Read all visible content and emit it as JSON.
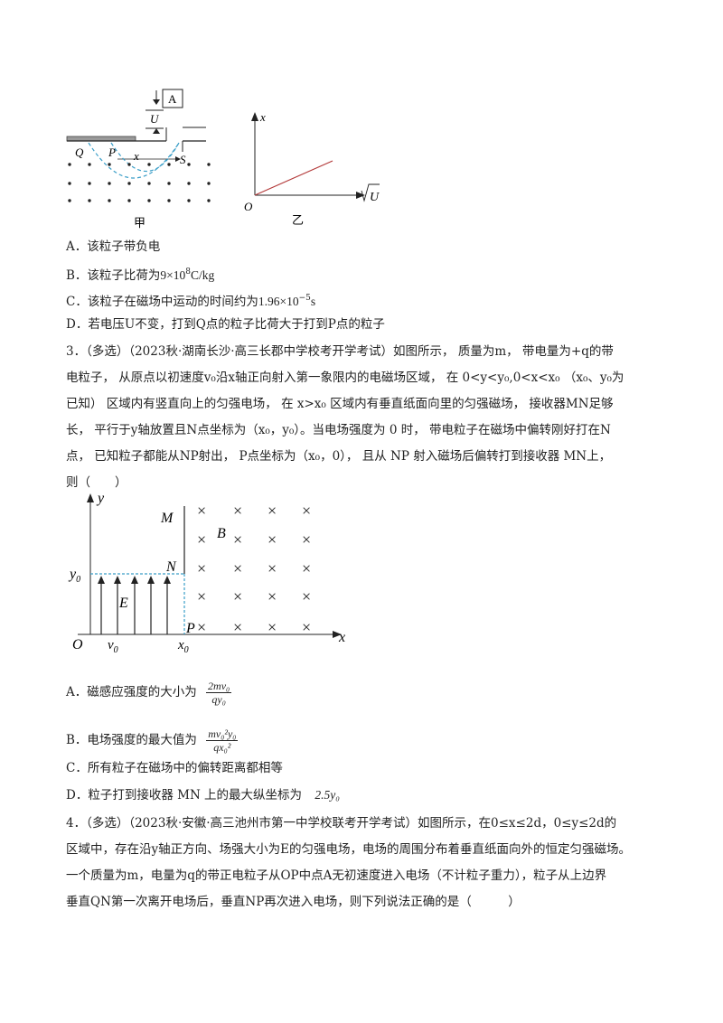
{
  "q2": {
    "fig_jia": {
      "label_A": "A",
      "label_U": "U",
      "label_Q": "Q",
      "label_P": "P",
      "label_S": "S",
      "label_x": "x",
      "caption": "甲"
    },
    "fig_yi": {
      "axis_x": "x",
      "axis_origin": "O",
      "axis_sqrtU": "U",
      "caption": "乙"
    },
    "options": {
      "A": "A．该粒子带负电",
      "B_prefix": "B．该粒子比荷为",
      "B_value": "9×10",
      "B_exp": "8",
      "B_unit": "C/kg",
      "C_prefix": "C．该粒子在磁场中运动的时间约为",
      "C_value": "1.96×10",
      "C_exp": "−5",
      "C_unit": "s",
      "D": "D．若电压U不变，打到Q点的粒子比荷大于打到P点的粒子"
    }
  },
  "q3": {
    "stem_line1": "3．（多选）（2023秋·湖南长沙·高三长郡中学校考开学考试）如图所示， 质量为m， 带电量为+q的带",
    "stem_line2": "电粒子， 从原点以初速度v₀沿x轴正向射入第一象限内的电磁场区域， 在 0<y<y₀,0<x<x₀ （x₀、y₀为",
    "stem_line3": "已知） 区域内有竖直向上的匀强电场， 在 x>x₀ 区域内有垂直纸面向里的匀强磁场， 接收器MN足够",
    "stem_line4": "长， 平行于y轴放置且N点坐标为（x₀，y₀）。当电场强度为 0 时， 带电粒子在磁场中偏转刚好打在N",
    "stem_line5": "点， 已知粒子都能从NP射出， P点坐标为（x₀，0）， 且从 NP 射入磁场后偏转打到接收器 MN上，",
    "stem_line6": "则（　　）",
    "figure": {
      "y": "y",
      "x": "x",
      "M": "M",
      "B": "B",
      "N": "N",
      "E": "E",
      "y0": "y",
      "y0_sub": "0",
      "O": "O",
      "v0": "v",
      "v0_sub": "0",
      "x0": "x",
      "x0_sub": "0",
      "P": "P",
      "cross": "×"
    },
    "options": {
      "A_text": "A．磁感应强度的大小为",
      "A_num": "2mv₀",
      "A_den": "qy₀",
      "B_text": "B．电场强度的最大值为",
      "B_num": "mv₀²y₀",
      "B_den": "qx₀²",
      "C_text": "C．所有粒子在磁场中的偏转距离都相等",
      "D_text": "D．粒子打到接收器 MN 上的最大纵坐标为",
      "D_value": "2.5y₀"
    }
  },
  "q4": {
    "stem_line1": "4．（多选）（2023秋·安徽·高三池州市第一中学校联考开学考试）如图所示，在0≤x≤2d，0≤y≤2d的",
    "stem_line2": "区域中，存在沿y轴正方向、场强大小为E的匀强电场，电场的周围分布着垂直纸面向外的恒定匀强磁场。",
    "stem_line3": "一个质量为m，电量为q的带正电粒子从OP中点A无初速度进入电场（不计粒子重力），粒子从上边界",
    "stem_line4": "垂直QN第一次离开电场后，垂直NP再次进入电场，则下列说法正确的是（　　　）"
  }
}
